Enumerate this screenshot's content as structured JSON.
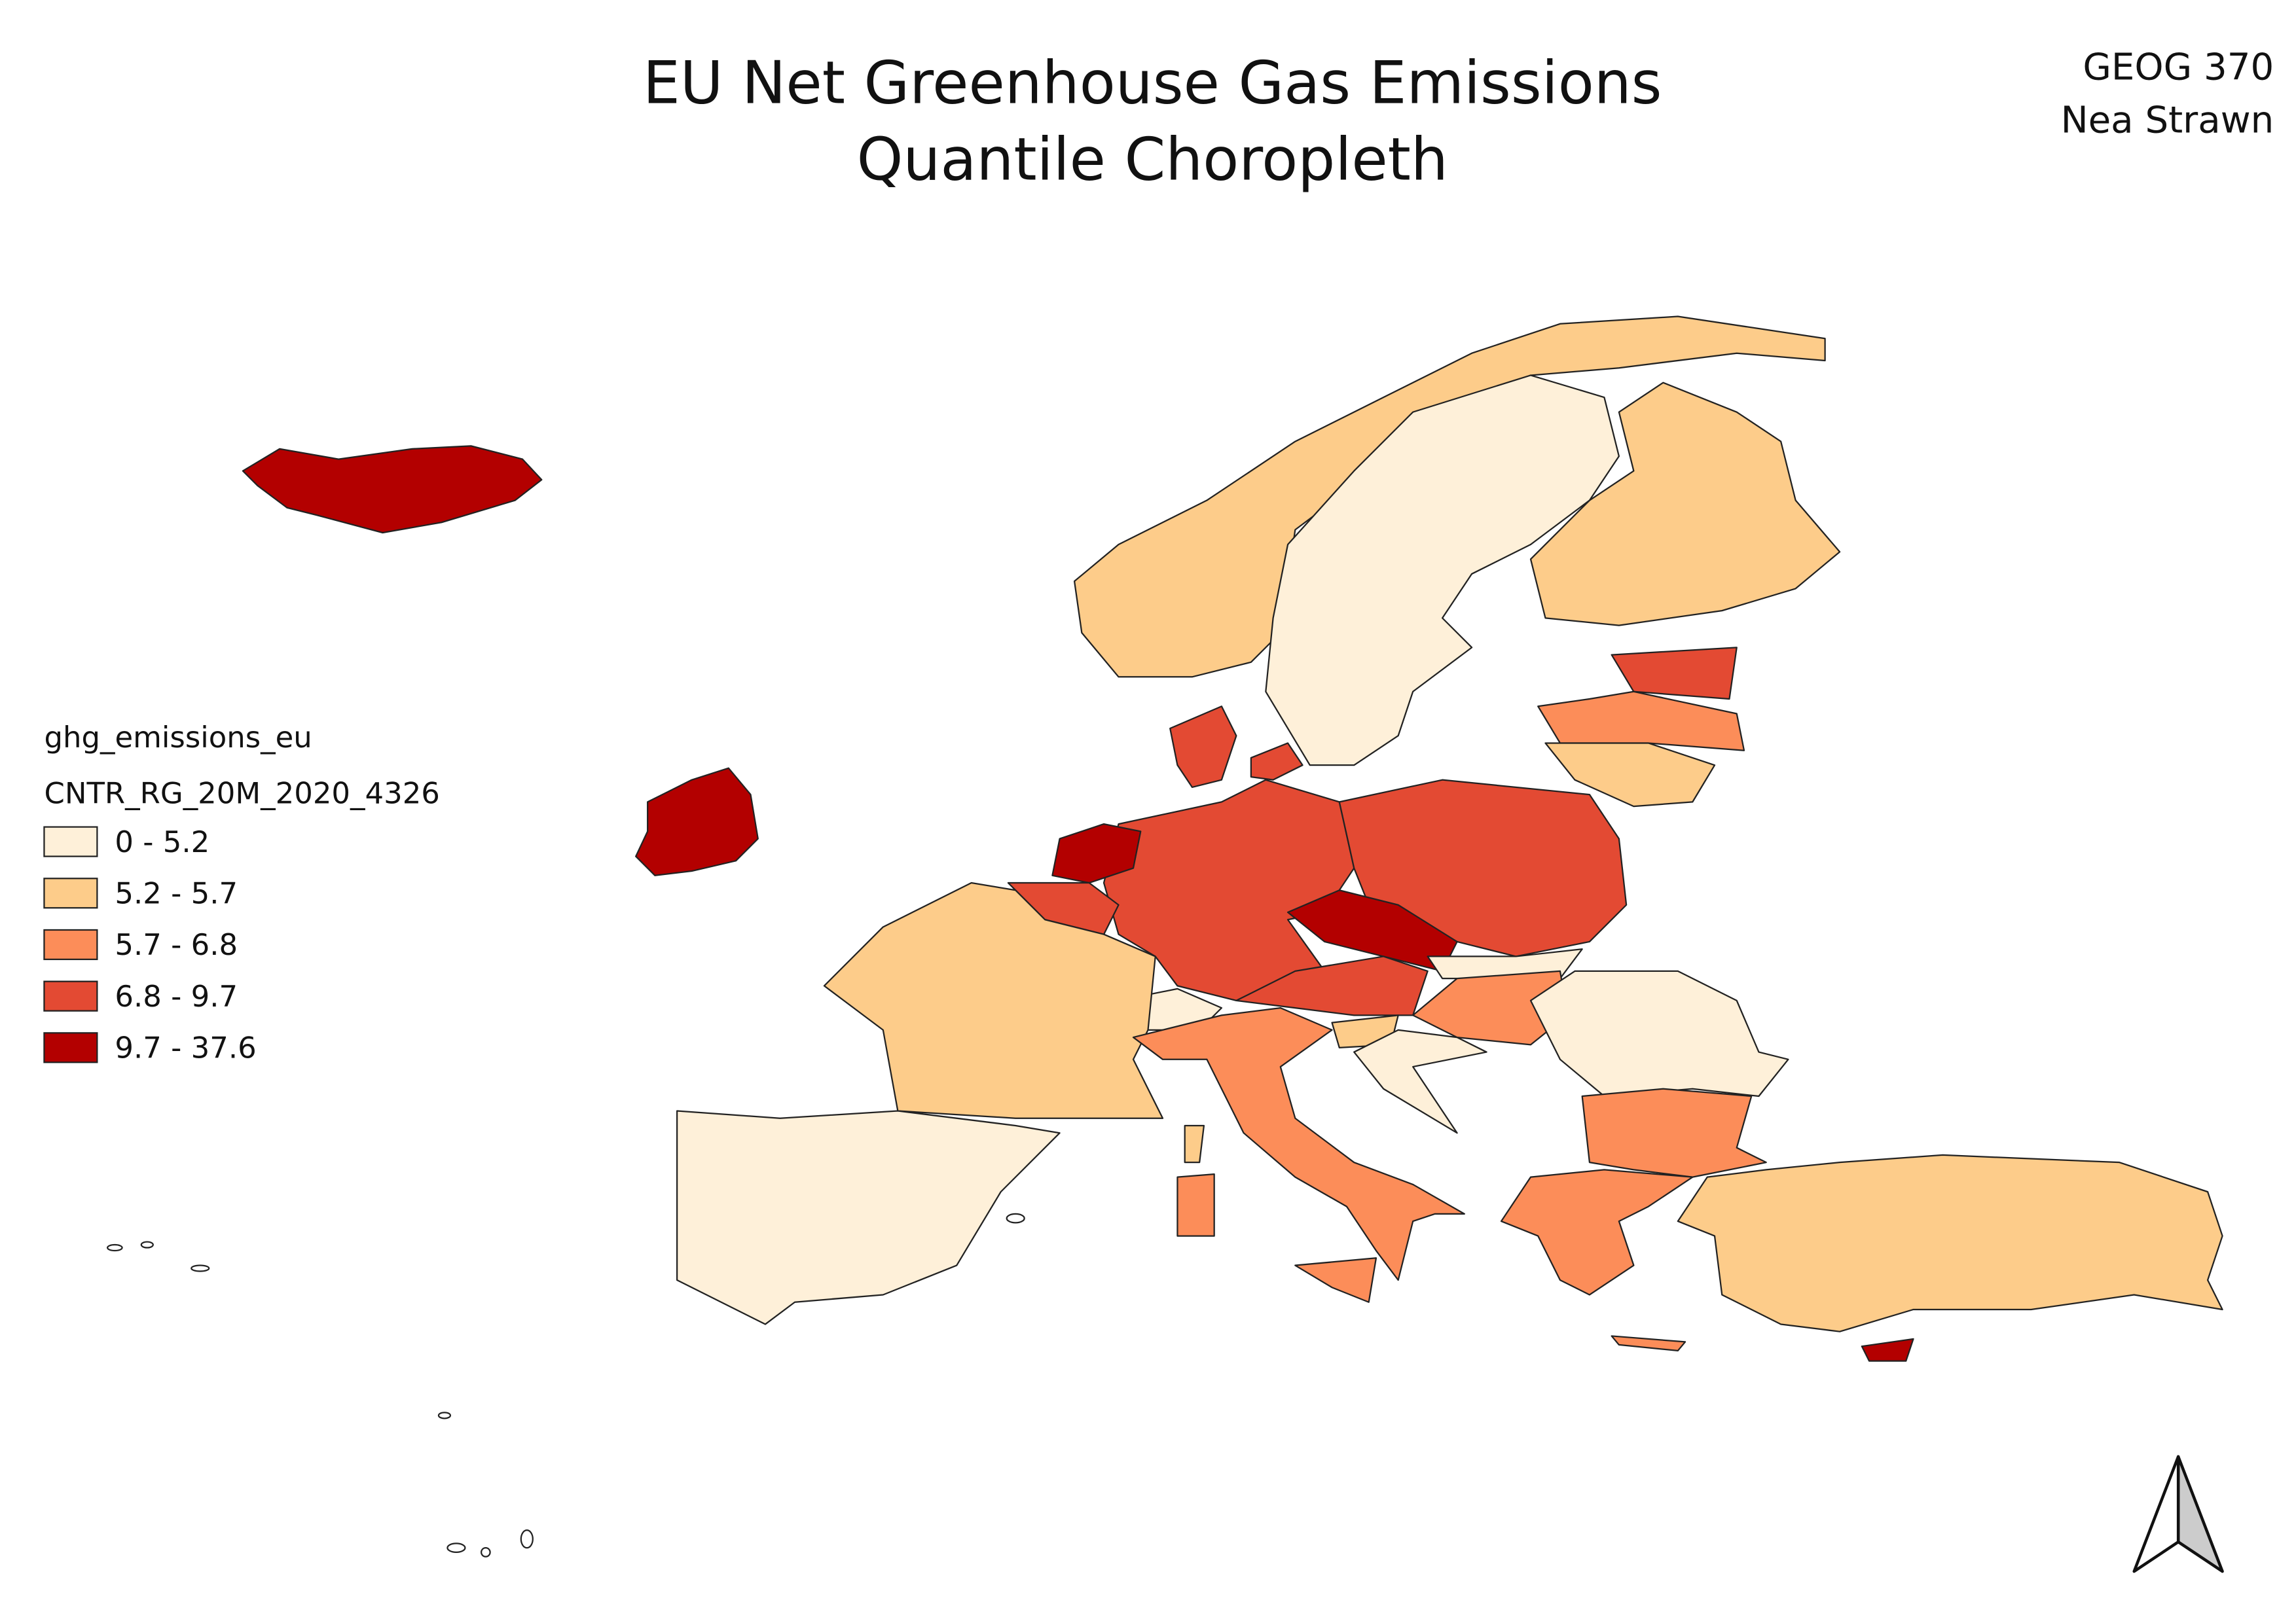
{
  "title": [
    "EU Net Greenhouse Gas Emissions",
    "Quantile Choropleth"
  ],
  "author": [
    "GEOG 370",
    "Nea Strawn"
  ],
  "legend": {
    "group": "ghg_emissions_eu",
    "layer": "CNTR_RG_20M_2020_4326",
    "classes": [
      {
        "label": "0 - 5.2",
        "color": "#fef0d9"
      },
      {
        "label": "5.2 - 5.7",
        "color": "#fdcc8a"
      },
      {
        "label": "5.7 - 6.8",
        "color": "#fc8d59"
      },
      {
        "label": "6.8 - 9.7",
        "color": "#e34a33"
      },
      {
        "label": "9.7 - 37.6",
        "color": "#b30000"
      }
    ]
  }
}
